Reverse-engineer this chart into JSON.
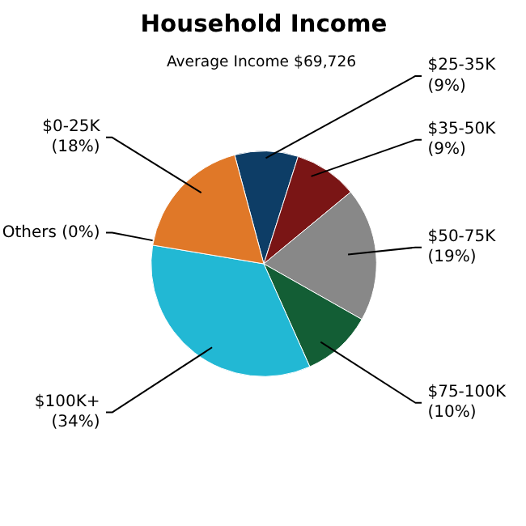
{
  "chart_data": {
    "type": "pie",
    "title": "Household Income",
    "subtitle": "Average Income  $69,726",
    "categories": [
      "$25-35K",
      "$35-50K",
      "$50-75K",
      "$75-100K",
      "$100K+",
      "Others",
      "$0-25K"
    ],
    "values": [
      9,
      9,
      19,
      10,
      34,
      0,
      18
    ],
    "colors": [
      "#0d3d66",
      "#7a1515",
      "#888888",
      "#135e35",
      "#22b8d4",
      "#b0b0b0",
      "#e07828"
    ],
    "value_labels": [
      "(9%)",
      "(9%)",
      "(19%)",
      "(10%)",
      "(34%)",
      "(0%)",
      "(18%)"
    ]
  }
}
